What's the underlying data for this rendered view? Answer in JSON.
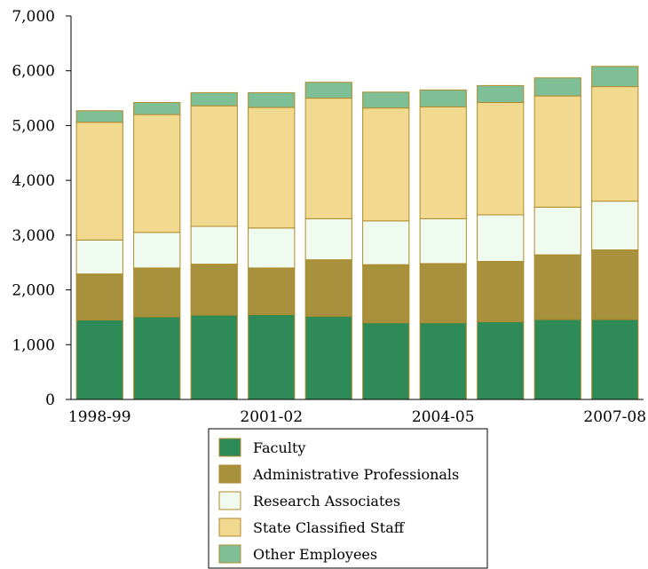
{
  "chart_data": {
    "type": "bar",
    "stacked": true,
    "x_tick_labels": [
      "1998-99",
      "2001-02",
      "2004-05",
      "2007-08"
    ],
    "x_tick_indices": [
      0,
      3,
      6,
      9
    ],
    "ylim": [
      0,
      7000
    ],
    "y_ticks": [
      0,
      1000,
      2000,
      3000,
      4000,
      5000,
      6000,
      7000
    ],
    "y_tick_labels": [
      "0",
      "1,000",
      "2,000",
      "3,000",
      "4,000",
      "5,000",
      "6,000",
      "7,000"
    ],
    "grid": false,
    "legend_position": "bottom",
    "series": [
      {
        "name": "Faculty",
        "color": "#2e8b57",
        "values": [
          1450,
          1510,
          1540,
          1550,
          1520,
          1400,
          1400,
          1420,
          1460,
          1460
        ]
      },
      {
        "name": "Administrative Professionals",
        "color": "#a8913c",
        "values": [
          840,
          890,
          930,
          850,
          1030,
          1060,
          1080,
          1100,
          1180,
          1270
        ]
      },
      {
        "name": "Research Associates",
        "color": "#eefbee",
        "values": [
          620,
          650,
          690,
          730,
          750,
          800,
          820,
          850,
          870,
          890
        ]
      },
      {
        "name": "State Classified Staff",
        "color": "#f1da8f",
        "values": [
          2150,
          2150,
          2200,
          2200,
          2200,
          2060,
          2040,
          2050,
          2030,
          2090
        ]
      },
      {
        "name": "Other Employees",
        "color": "#7fbf95",
        "values": [
          210,
          220,
          240,
          270,
          290,
          290,
          310,
          310,
          330,
          370
        ]
      }
    ]
  }
}
